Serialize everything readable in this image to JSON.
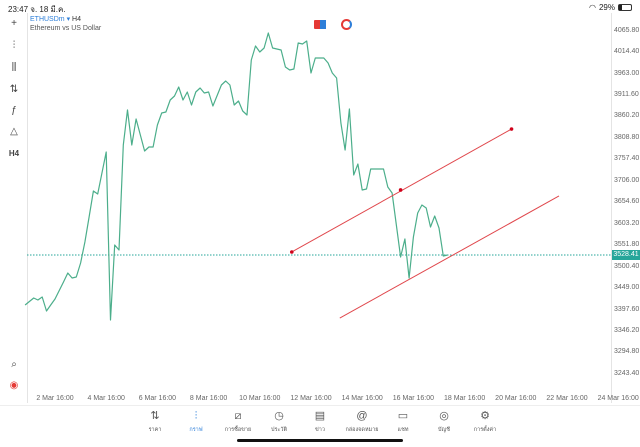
{
  "status": {
    "time": "23:47",
    "date": "จ. 18 มี.ค.",
    "battery": "29%",
    "battery_level": 0.29
  },
  "symbol": {
    "name": "ETHUSDm",
    "timeframe": "H4",
    "description": "Ethereum vs US Dollar"
  },
  "toolbar": [
    {
      "icon": "crosshair-icon",
      "g": "+"
    },
    {
      "icon": "candles-icon",
      "g": "⫶"
    },
    {
      "icon": "indicators-icon",
      "g": "⫼"
    },
    {
      "icon": "sliders-icon",
      "g": "⇅"
    },
    {
      "icon": "function-icon",
      "g": "ƒ"
    },
    {
      "icon": "shapes-icon",
      "g": "△"
    },
    {
      "icon": "timeframe-label",
      "g": "H4"
    }
  ],
  "bottom_tools": [
    {
      "icon": "magnifier-icon",
      "g": "⌕"
    },
    {
      "icon": "broker-logo-icon",
      "g": "◉"
    }
  ],
  "colors": {
    "line": "#4cae8b",
    "trend": "#e0474c",
    "price": "#26a69a",
    "accent": "#2e7fd9"
  },
  "chart_data": {
    "type": "line",
    "yticks": [
      "4065.80",
      "4014.40",
      "3963.00",
      "3911.60",
      "3860.20",
      "3808.80",
      "3757.40",
      "3706.00",
      "3654.60",
      "3603.20",
      "3551.80",
      "3500.40",
      "3449.00",
      "3397.60",
      "3346.20",
      "3294.80",
      "3243.40"
    ],
    "xticks": [
      "2 Mar 16:00",
      "4 Mar 16:00",
      "6 Mar 16:00",
      "8 Mar 16:00",
      "10 Mar 16:00",
      "12 Mar 16:00",
      "14 Mar 16:00",
      "16 Mar 16:00",
      "18 Mar 16:00",
      "20 Mar 16:00",
      "22 Mar 16:00",
      "24 Mar 16:00"
    ],
    "current_price": "3528.41",
    "series": [
      [
        "03-01 12:00",
        3408.5
      ],
      [
        "03-01 20:00",
        3425.2
      ],
      [
        "03-02 00:00",
        3420.4
      ],
      [
        "03-02 04:00",
        3427.6
      ],
      [
        "03-02 08:00",
        3394.1
      ],
      [
        "03-02 12:00",
        3408.5
      ],
      [
        "03-02 16:00",
        3422.8
      ],
      [
        "03-03 00:00",
        3463.6
      ],
      [
        "03-03 04:00",
        3485.2
      ],
      [
        "03-03 08:00",
        3473.2
      ],
      [
        "03-03 12:00",
        3475.6
      ],
      [
        "03-03 16:00",
        3509.1
      ],
      [
        "03-03 20:00",
        3559.4
      ],
      [
        "03-04 00:00",
        3619.3
      ],
      [
        "03-04 04:00",
        3681.7
      ],
      [
        "03-04 08:00",
        3674.5
      ],
      [
        "03-04 16:00",
        3775.1
      ],
      [
        "03-04 20:00",
        3372.5
      ],
      [
        "03-05 00:00",
        3552.3
      ],
      [
        "03-05 04:00",
        3540.3
      ],
      [
        "03-05 08:00",
        3791.9
      ],
      [
        "03-05 12:00",
        3875.8
      ],
      [
        "03-05 16:00",
        3791.9
      ],
      [
        "03-05 20:00",
        3854.2
      ],
      [
        "03-06 04:00",
        3777.5
      ],
      [
        "03-06 08:00",
        3787.1
      ],
      [
        "03-06 12:00",
        3787.1
      ],
      [
        "03-06 16:00",
        3839.8
      ],
      [
        "03-06 20:00",
        3868.6
      ],
      [
        "03-07 00:00",
        3871.0
      ],
      [
        "03-07 04:00",
        3899.7
      ],
      [
        "03-07 08:00",
        3909.3
      ],
      [
        "03-07 12:00",
        3930.9
      ],
      [
        "03-07 16:00",
        3899.7
      ],
      [
        "03-07 20:00",
        3919.0
      ],
      [
        "03-08 00:00",
        3887.7
      ],
      [
        "03-08 04:00",
        3918.9
      ],
      [
        "03-08 08:00",
        3928.5
      ],
      [
        "03-08 12:00",
        3916.5
      ],
      [
        "03-08 16:00",
        3918.9
      ],
      [
        "03-08 20:00",
        3885.4
      ],
      [
        "03-09 04:00",
        3935.7
      ],
      [
        "03-09 08:00",
        3945.3
      ],
      [
        "03-09 12:00",
        3935.7
      ],
      [
        "03-09 16:00",
        3887.7
      ],
      [
        "03-09 20:00",
        3897.3
      ],
      [
        "03-10 00:00",
        3873.4
      ],
      [
        "03-10 04:00",
        3863.8
      ],
      [
        "03-10 08:00",
        3995.6
      ],
      [
        "03-10 12:00",
        4029.1
      ],
      [
        "03-10 16:00",
        4014.8
      ],
      [
        "03-10 20:00",
        4024.3
      ],
      [
        "03-11 00:00",
        4060.3
      ],
      [
        "03-11 04:00",
        4024.3
      ],
      [
        "03-11 12:00",
        4019.5
      ],
      [
        "03-11 16:00",
        3978.8
      ],
      [
        "03-11 20:00",
        3971.6
      ],
      [
        "03-12 00:00",
        3974.0
      ],
      [
        "03-12 04:00",
        4036.3
      ],
      [
        "03-12 08:00",
        4033.9
      ],
      [
        "03-12 12:00",
        4041.1
      ],
      [
        "03-12 16:00",
        3964.4
      ],
      [
        "03-12 20:00",
        4000.4
      ],
      [
        "03-13 04:00",
        4000.4
      ],
      [
        "03-13 08:00",
        3988.4
      ],
      [
        "03-13 12:00",
        3964.4
      ],
      [
        "03-13 16:00",
        3952.4
      ],
      [
        "03-13 20:00",
        3844.6
      ],
      [
        "03-14 00:00",
        3779.9
      ],
      [
        "03-14 04:00",
        3878.2
      ],
      [
        "03-14 08:00",
        3720.0
      ],
      [
        "03-14 12:00",
        3746.4
      ],
      [
        "03-14 16:00",
        3684.1
      ],
      [
        "03-14 20:00",
        3686.5
      ],
      [
        "03-15 00:00",
        3734.4
      ],
      [
        "03-15 12:00",
        3734.4
      ],
      [
        "03-15 16:00",
        3691.2
      ],
      [
        "03-15 20:00",
        3676.9
      ],
      [
        "03-16 04:00",
        3523.5
      ],
      [
        "03-16 08:00",
        3566.6
      ],
      [
        "03-16 12:00",
        3473.2
      ],
      [
        "03-16 16:00",
        3571.4
      ],
      [
        "03-16 20:00",
        3628.9
      ],
      [
        "03-17 00:00",
        3648.1
      ],
      [
        "03-17 04:00",
        3640.9
      ],
      [
        "03-17 08:00",
        3595.4
      ],
      [
        "03-17 12:00",
        3621.7
      ],
      [
        "03-17 16:00",
        3593.0
      ],
      [
        "03-17 20:00",
        3525.9
      ],
      [
        "03-18 00:00",
        3528.41
      ]
    ],
    "trendlines": [
      {
        "from": [
          "03-11 22:00",
          3535.5
        ],
        "to": [
          "03-20 12:00",
          3830.2
        ],
        "mid": [
          "03-16 04:00",
          3684.1
        ]
      },
      {
        "from": [
          "03-13 19:00",
          3377.3
        ],
        "to": [
          "03-22 08:30",
          3669.7
        ]
      }
    ],
    "grid": false
  },
  "nav": [
    {
      "icon": "price-arrows-icon",
      "g": "⇅",
      "label": "ราคา"
    },
    {
      "icon": "chart-candles-icon",
      "g": "⫶",
      "label": "กราฟ",
      "active": true
    },
    {
      "icon": "trade-chart-icon",
      "g": "⧄",
      "label": "การซื้อขาย"
    },
    {
      "icon": "history-clock-icon",
      "g": "◷",
      "label": "ประวัติ"
    },
    {
      "icon": "news-icon",
      "g": "▤",
      "label": "ข่าว"
    },
    {
      "icon": "mailbox-at-icon",
      "g": "@",
      "label": "กล่องจดหมาย"
    },
    {
      "icon": "chat-icon",
      "g": "▭",
      "label": "แชท"
    },
    {
      "icon": "account-icon",
      "g": "◎",
      "label": "บัญชี"
    },
    {
      "icon": "settings-gear-icon",
      "g": "⚙",
      "label": "การตั้งค่า"
    }
  ]
}
